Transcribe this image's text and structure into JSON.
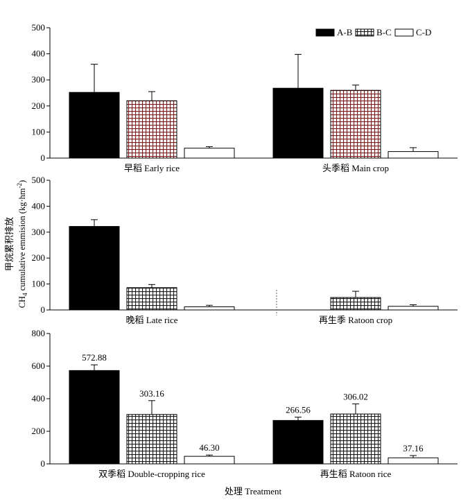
{
  "figure": {
    "ylabel_cn": "甲烷累积排放",
    "ylabel_en_pre": "CH",
    "ylabel_en_sub": "4",
    "ylabel_en_mid": " cumulative emmision (kg·hm",
    "ylabel_en_sup": "-2",
    "ylabel_en_post": ")",
    "xlabel": "处理 Treatment"
  },
  "legend": [
    {
      "label": "A-B",
      "fill": "solid-black"
    },
    {
      "label": "B-C",
      "fill": "grid-hatch"
    },
    {
      "label": "C-D",
      "fill": "white"
    }
  ],
  "colors": {
    "bar_solid": "#000000",
    "hatch_dark": "#1a1a1a",
    "hatch_red": "#7a1a1a",
    "axis": "#000000"
  },
  "chart_data": [
    {
      "type": "bar",
      "panel": "top",
      "ylim": [
        0,
        500
      ],
      "yticks": [
        0,
        100,
        200,
        300,
        400,
        500
      ],
      "groups": [
        {
          "label": "早稻 Early rice",
          "values": [
            252,
            220,
            38
          ],
          "errors": [
            108,
            35,
            6
          ]
        },
        {
          "label": "头季稻 Main crop",
          "values": [
            268,
            260,
            25
          ],
          "errors": [
            130,
            20,
            15
          ]
        }
      ],
      "series": [
        {
          "name": "A-B"
        },
        {
          "name": "B-C"
        },
        {
          "name": "C-D"
        }
      ],
      "hatch": "red-grid",
      "legend_position": "top-right"
    },
    {
      "type": "bar",
      "panel": "middle",
      "ylim": [
        0,
        500
      ],
      "yticks": [
        0,
        100,
        200,
        300,
        400,
        500
      ],
      "groups": [
        {
          "label": "晚稻 Late rice",
          "values": [
            322,
            86,
            12
          ],
          "errors": [
            26,
            12,
            6
          ]
        },
        {
          "label": "再生季 Ratoon crop",
          "values": [
            null,
            48,
            14
          ],
          "errors": [
            null,
            24,
            6
          ]
        }
      ],
      "series": [
        {
          "name": "A-B"
        },
        {
          "name": "B-C"
        },
        {
          "name": "C-D"
        }
      ],
      "hatch": "dark-grid"
    },
    {
      "type": "bar",
      "panel": "bottom",
      "ylim": [
        0,
        800
      ],
      "yticks": [
        0,
        200,
        400,
        600,
        800
      ],
      "groups": [
        {
          "label": "双季稻 Double-cropping rice",
          "values": [
            572.88,
            303.16,
            46.3
          ],
          "errors": [
            35,
            85,
            8
          ],
          "value_labels": [
            "572.88",
            "303.16",
            "46.30"
          ]
        },
        {
          "label": "再生稻 Ratoon rice",
          "values": [
            266.56,
            306.02,
            37.16
          ],
          "errors": [
            20,
            62,
            14
          ],
          "value_labels": [
            "266.56",
            "306.02",
            "37.16"
          ]
        }
      ],
      "series": [
        {
          "name": "A-B"
        },
        {
          "name": "B-C"
        },
        {
          "name": "C-D"
        }
      ],
      "hatch": "dark-grid"
    }
  ]
}
